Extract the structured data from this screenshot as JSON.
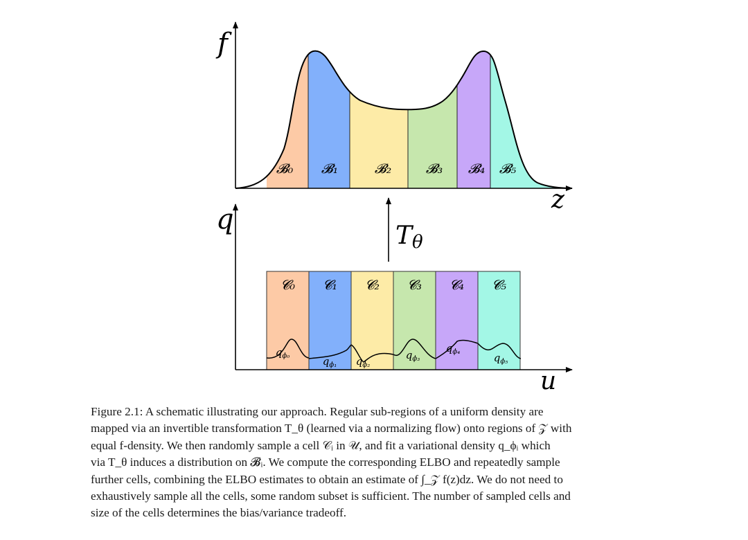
{
  "figure": {
    "top_panel": {
      "axis_y_label": "f",
      "axis_x_label": "z",
      "regions": [
        {
          "label": "𝓑₀",
          "color": "#fdcaa6"
        },
        {
          "label": "𝓑₁",
          "color": "#82b0fb"
        },
        {
          "label": "𝓑₂",
          "color": "#fdeba7"
        },
        {
          "label": "𝓑₃",
          "color": "#c6e7ad"
        },
        {
          "label": "𝓑₄",
          "color": "#c7a7f9"
        },
        {
          "label": "𝓑₅",
          "color": "#a3f7e6"
        }
      ]
    },
    "transform_label": "T",
    "transform_subscript": "θ",
    "bottom_panel": {
      "axis_y_label": "q",
      "axis_x_label": "u",
      "cells": [
        {
          "label": "𝓒₀",
          "density_label": "q",
          "density_sub": "ϕ₀",
          "color": "#fdcaa6"
        },
        {
          "label": "𝓒₁",
          "density_label": "q",
          "density_sub": "ϕ₁",
          "color": "#82b0fb"
        },
        {
          "label": "𝓒₂",
          "density_label": "q",
          "density_sub": "ϕ₂",
          "color": "#fdeba7"
        },
        {
          "label": "𝓒₃",
          "density_label": "q",
          "density_sub": "ϕ₃",
          "color": "#c6e7ad"
        },
        {
          "label": "𝓒₄",
          "density_label": "q",
          "density_sub": "ϕ₄",
          "color": "#c7a7f9"
        },
        {
          "label": "𝓒₅",
          "density_label": "q",
          "density_sub": "ϕ₅",
          "color": "#a3f7e6"
        }
      ]
    }
  },
  "caption": {
    "lines": [
      "Figure 2.1: A schematic illustrating our approach. Regular sub-regions of a uniform density are",
      "mapped via an invertible transformation T_θ (learned via a normalizing flow) onto regions of 𝒵 with",
      "equal f-density. We then randomly sample a cell 𝒞ᵢ in 𝒰, and fit a variational density q_ϕᵢ which",
      "via T_θ induces a distribution on 𝓑ᵢ. We compute the corresponding ELBO and repeatedly sample",
      "further cells, combining the ELBO estimates to obtain an estimate of ∫_𝒵 f(z)dz. We do not need to",
      "exhaustively sample all the cells, some random subset is sufficient. The number of sampled cells and",
      "size of the cells determines the bias/variance tradeoff."
    ]
  }
}
